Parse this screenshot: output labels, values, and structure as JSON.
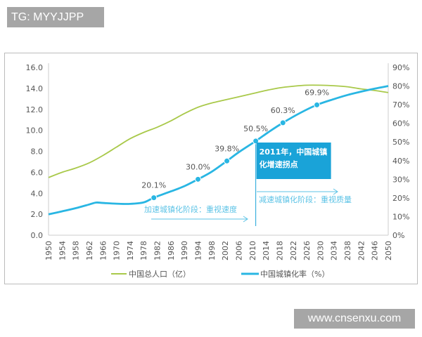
{
  "tag_banner": "TG: MYYJJPP",
  "watermark": "www.cnsenxu.com",
  "chart_data": {
    "type": "line",
    "title": "",
    "x_ticks": [
      "1950",
      "1954",
      "1958",
      "1962",
      "1966",
      "1970",
      "1974",
      "1978",
      "1982",
      "1986",
      "1990",
      "1994",
      "1998",
      "2002",
      "2006",
      "2010",
      "2014",
      "2018",
      "2022",
      "2026",
      "2030",
      "2034",
      "2038",
      "2042",
      "2046",
      "2050"
    ],
    "xlim": [
      1950,
      2050
    ],
    "y_left": {
      "ticks": [
        "0.0",
        "2.0",
        "4.0",
        "6.0",
        "8.0",
        "10.0",
        "12.0",
        "14.0",
        "16.0"
      ],
      "range": [
        0,
        16
      ]
    },
    "y_right": {
      "ticks": [
        "0%",
        "10%",
        "20%",
        "30%",
        "40%",
        "50%",
        "60%",
        "70%",
        "80%",
        "90%"
      ],
      "range": [
        0,
        90
      ]
    },
    "grid": false,
    "legend_position": "bottom",
    "series": [
      {
        "name": "中国总人口（亿）",
        "axis": "left",
        "color": "#a9c94a",
        "x": [
          1950,
          1954,
          1958,
          1962,
          1966,
          1970,
          1974,
          1978,
          1982,
          1986,
          1990,
          1994,
          1998,
          2002,
          2006,
          2010,
          2014,
          2018,
          2022,
          2026,
          2030,
          2034,
          2038,
          2042,
          2046,
          2050
        ],
        "y": [
          5.5,
          6.0,
          6.4,
          6.9,
          7.6,
          8.4,
          9.2,
          9.8,
          10.3,
          10.9,
          11.6,
          12.2,
          12.6,
          12.9,
          13.2,
          13.5,
          13.8,
          14.05,
          14.2,
          14.3,
          14.3,
          14.25,
          14.15,
          13.95,
          13.8,
          13.6
        ]
      },
      {
        "name": "中国城镇化率（%）",
        "axis": "right",
        "color": "#29b6e3",
        "x": [
          1950,
          1954,
          1958,
          1962,
          1964,
          1966,
          1970,
          1974,
          1978,
          1981,
          1986,
          1990,
          1994,
          1998,
          2002.5,
          2006,
          2011,
          2015,
          2019,
          2024,
          2029,
          2034,
          2038,
          2042,
          2046,
          2050
        ],
        "y": [
          11.2,
          12.8,
          14.5,
          16.5,
          17.5,
          17.3,
          16.9,
          16.8,
          17.6,
          20.1,
          23.5,
          26.3,
          30.0,
          34.0,
          39.8,
          44.5,
          50.5,
          55.6,
          60.3,
          65.5,
          69.9,
          73.0,
          75.2,
          77.0,
          78.6,
          80.0
        ]
      }
    ],
    "data_labels": [
      {
        "x": 1981,
        "value": 20.1,
        "text": "20.1%"
      },
      {
        "x": 1994,
        "value": 30.0,
        "text": "30.0%"
      },
      {
        "x": 2002.5,
        "value": 39.8,
        "text": "39.8%"
      },
      {
        "x": 2011,
        "value": 50.5,
        "text": "50.5%"
      },
      {
        "x": 2019,
        "value": 60.3,
        "text": "60.3%"
      },
      {
        "x": 2029,
        "value": 69.9,
        "text": "69.9%"
      }
    ],
    "annotations": {
      "callout_line1": "2011年，中国城镇",
      "callout_line2": "化增速拐点",
      "callout_color": "#1aa3d8",
      "phase_accelerate": "加速城镇化阶段：重视速度",
      "phase_decelerate": "减速城镇化阶段：重视质量"
    }
  }
}
